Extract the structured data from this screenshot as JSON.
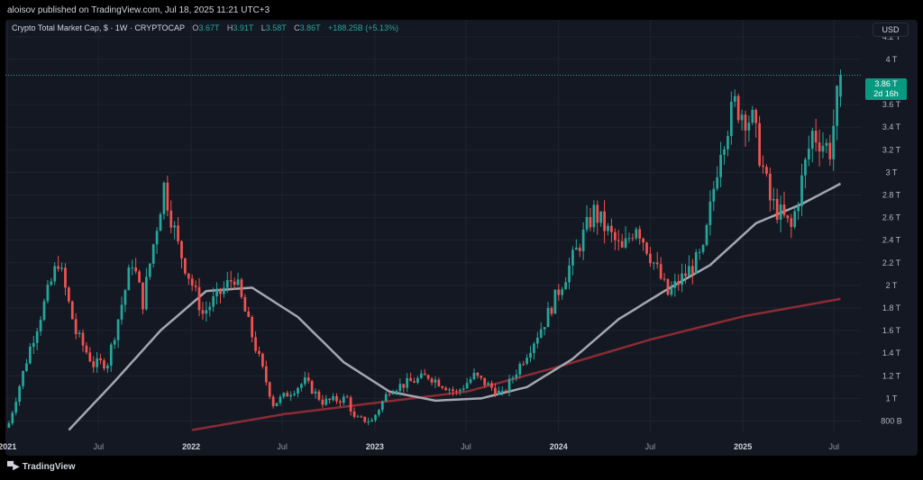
{
  "publish_line": "aloisov published on TradingView.com, Jul 18, 2025 11:21 UTC+3",
  "legend": {
    "symbol": "Crypto Total Market Cap, $ · 1W · CRYPTOCAP",
    "open_key": "O",
    "open": "3.67T",
    "high_key": "H",
    "high": "3.91T",
    "low_key": "L",
    "low": "3.58T",
    "close_key": "C",
    "close": "3.86T",
    "change": "+188.25B (+5.13%)"
  },
  "currency_button": "USD",
  "last_price": {
    "value": "3.86 T",
    "countdown": "2d 16h"
  },
  "brand": "TradingView",
  "colors": {
    "up": "#26a69a",
    "down": "#ef5350",
    "ma_short": "#a4a7b0",
    "ma_long": "#8c2b34",
    "background": "#141823"
  },
  "chart_data": {
    "type": "candlestick",
    "title": "Crypto Total Market Cap, $ · 1W · CRYPTOCAP",
    "interval": "1W",
    "grid": true,
    "y_axis": {
      "ticks": [
        0.8,
        1.0,
        1.2,
        1.4,
        1.6,
        1.8,
        2.0,
        2.2,
        2.4,
        2.6,
        2.8,
        3.0,
        3.2,
        3.4,
        3.6,
        4.0,
        4.2
      ],
      "tick_labels": [
        "800 B",
        "1 T",
        "1.2 T",
        "1.4 T",
        "1.6 T",
        "1.8 T",
        "2 T",
        "2.2 T",
        "2.4 T",
        "2.6 T",
        "2.8 T",
        "3 T",
        "3.2 T",
        "3.4 T",
        "3.6 T",
        "4 T",
        "4.2 T"
      ],
      "unit": "trillion USD",
      "range": [
        0.7,
        4.35
      ]
    },
    "x_axis": {
      "range": [
        "2020-12-28",
        "2025-08-25"
      ],
      "ticks": [
        "2021-01-01",
        "2021-07-01",
        "2022-01-01",
        "2022-07-01",
        "2023-01-01",
        "2023-07-01",
        "2024-01-01",
        "2024-07-01",
        "2025-01-01",
        "2025-07-01"
      ],
      "tick_labels": [
        "2021",
        "Jul",
        "2022",
        "Jul",
        "2023",
        "Jul",
        "2024",
        "Jul",
        "2025",
        "Jul"
      ],
      "bold_labels": [
        "2021",
        "2022",
        "2023",
        "2024",
        "2025"
      ]
    },
    "series": [
      {
        "kind": "close_keyframes",
        "points": [
          [
            "2021-01-04",
            0.78
          ],
          [
            "2021-02-15",
            1.45
          ],
          [
            "2021-04-12",
            2.22
          ],
          [
            "2021-05-17",
            1.58
          ],
          [
            "2021-06-21",
            1.3
          ],
          [
            "2021-07-19",
            1.32
          ],
          [
            "2021-09-06",
            2.22
          ],
          [
            "2021-09-27",
            1.85
          ],
          [
            "2021-11-08",
            2.88
          ],
          [
            "2021-12-06",
            2.35
          ],
          [
            "2022-01-24",
            1.75
          ],
          [
            "2022-03-28",
            2.08
          ],
          [
            "2022-05-09",
            1.45
          ],
          [
            "2022-06-13",
            0.95
          ],
          [
            "2022-08-15",
            1.15
          ],
          [
            "2022-09-19",
            0.97
          ],
          [
            "2022-11-07",
            1.0
          ],
          [
            "2022-11-21",
            0.82
          ],
          [
            "2022-12-26",
            0.8
          ],
          [
            "2023-01-30",
            1.08
          ],
          [
            "2023-04-17",
            1.2
          ],
          [
            "2023-06-12",
            1.05
          ],
          [
            "2023-07-17",
            1.2
          ],
          [
            "2023-09-11",
            1.03
          ],
          [
            "2023-10-23",
            1.35
          ],
          [
            "2023-12-04",
            1.68
          ],
          [
            "2024-03-11",
            2.65
          ],
          [
            "2024-05-06",
            2.3
          ],
          [
            "2024-06-03",
            2.55
          ],
          [
            "2024-08-05",
            1.92
          ],
          [
            "2024-10-14",
            2.28
          ],
          [
            "2024-11-18",
            3.25
          ],
          [
            "2024-12-16",
            3.6
          ],
          [
            "2025-01-20",
            3.45
          ],
          [
            "2025-02-24",
            2.75
          ],
          [
            "2025-04-07",
            2.5
          ],
          [
            "2025-05-19",
            3.35
          ],
          [
            "2025-06-23",
            3.2
          ],
          [
            "2025-07-14",
            3.86
          ]
        ]
      },
      {
        "kind": "moving_average_short",
        "points": [
          [
            "2021-05-03",
            0.72
          ],
          [
            "2021-08-02",
            1.15
          ],
          [
            "2021-11-01",
            1.6
          ],
          [
            "2022-01-31",
            1.95
          ],
          [
            "2022-05-02",
            1.98
          ],
          [
            "2022-08-01",
            1.72
          ],
          [
            "2022-10-31",
            1.32
          ],
          [
            "2023-01-30",
            1.06
          ],
          [
            "2023-05-01",
            0.98
          ],
          [
            "2023-07-31",
            1.0
          ],
          [
            "2023-10-30",
            1.1
          ],
          [
            "2024-01-29",
            1.35
          ],
          [
            "2024-04-29",
            1.7
          ],
          [
            "2024-07-29",
            1.95
          ],
          [
            "2024-10-28",
            2.18
          ],
          [
            "2025-01-27",
            2.55
          ],
          [
            "2025-04-28",
            2.72
          ],
          [
            "2025-07-14",
            2.9
          ]
        ]
      },
      {
        "kind": "moving_average_long",
        "points": [
          [
            "2022-01-03",
            0.72
          ],
          [
            "2022-07-04",
            0.86
          ],
          [
            "2023-01-02",
            0.96
          ],
          [
            "2023-07-03",
            1.06
          ],
          [
            "2024-01-01",
            1.28
          ],
          [
            "2024-07-01",
            1.52
          ],
          [
            "2025-01-06",
            1.73
          ],
          [
            "2025-07-14",
            1.88
          ]
        ]
      }
    ],
    "last_close": 3.86
  }
}
